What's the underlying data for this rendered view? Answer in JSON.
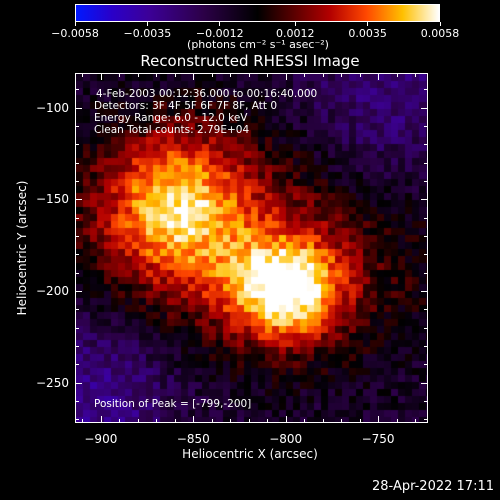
{
  "colorbar": {
    "tick_labels": [
      "-0.0058",
      "-0.0035",
      "-0.0012",
      "0.0012",
      "0.0035",
      "0.0058"
    ],
    "units": "(photons cm⁻² s⁻¹ asec⁻²)",
    "colors": [
      "#0019ff",
      "#2a00c8",
      "#000000",
      "#b30000",
      "#ff4800",
      "#ffc000",
      "#ffffff"
    ]
  },
  "plot": {
    "title": "Reconstructed RHESSI Image",
    "info_lines": [
      "4-Feb-2003 00:12:36.000 to 00:16:40.000",
      "Detectors: 3F 4F 5F 6F 7F 8F, Att 0",
      "Energy Range: 6.0 - 12.0 keV",
      "Clean     Total counts: 2.79E+04"
    ],
    "peak_text": "Position of Peak = [-799,-200]"
  },
  "chart_data": {
    "type": "heatmap",
    "title": "Reconstructed RHESSI Image",
    "xlabel": "Heliocentric X (arcsec)",
    "ylabel": "Heliocentric Y (arcsec)",
    "xlim": [
      -914,
      -723
    ],
    "ylim": [
      -272,
      -81
    ],
    "xticks": [
      -900,
      -850,
      -800,
      -750
    ],
    "yticks": [
      -100,
      -150,
      -200,
      -250
    ],
    "x_tick_labels": [
      "-900",
      "-850",
      "-800",
      "-750"
    ],
    "y_tick_labels": [
      "-100",
      "-150",
      "-200",
      "-250"
    ],
    "colorbar_range": [
      -0.0058,
      0.0058
    ],
    "sources": [
      {
        "x": -799,
        "y": -200,
        "peak": 0.0058
      },
      {
        "x": -860,
        "y": -152,
        "peak": 0.0045
      }
    ],
    "peak_position": [
      -799,
      -200
    ]
  },
  "footer": {
    "timestamp": "28-Apr-2022 17:11"
  }
}
